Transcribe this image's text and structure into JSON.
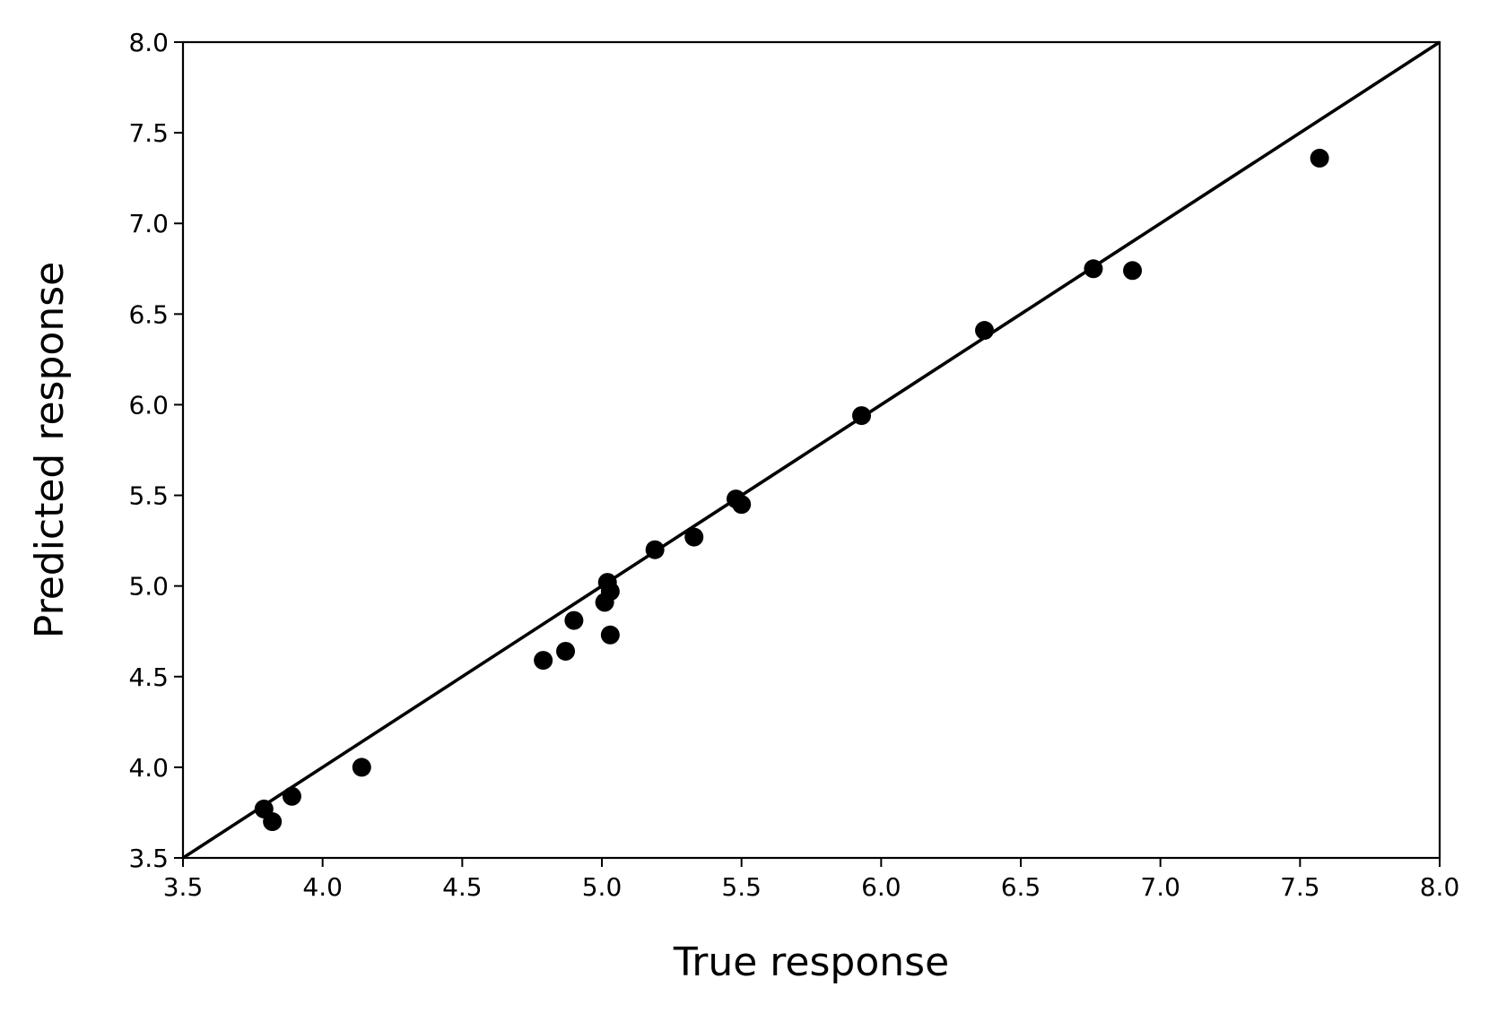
{
  "chart_data": {
    "type": "scatter",
    "xlabel": "True response",
    "ylabel": "Predicted response",
    "xlim": [
      3.5,
      8.0
    ],
    "ylim": [
      3.5,
      8.0
    ],
    "xticks": [
      "3.5",
      "4.0",
      "4.5",
      "5.0",
      "5.5",
      "6.0",
      "6.5",
      "7.0",
      "7.5",
      "8.0"
    ],
    "yticks": [
      "3.5",
      "4.0",
      "4.5",
      "5.0",
      "5.5",
      "6.0",
      "6.5",
      "7.0",
      "7.5",
      "8.0"
    ],
    "grid": false,
    "reference_line": {
      "from": [
        3.5,
        3.5
      ],
      "to": [
        8.0,
        8.0
      ]
    },
    "color": "#000000",
    "points": [
      {
        "x": 3.79,
        "y": 3.77
      },
      {
        "x": 3.82,
        "y": 3.7
      },
      {
        "x": 3.89,
        "y": 3.84
      },
      {
        "x": 4.14,
        "y": 4.0
      },
      {
        "x": 4.79,
        "y": 4.59
      },
      {
        "x": 4.87,
        "y": 4.64
      },
      {
        "x": 4.9,
        "y": 4.81
      },
      {
        "x": 5.01,
        "y": 4.91
      },
      {
        "x": 5.02,
        "y": 5.02
      },
      {
        "x": 5.03,
        "y": 4.97
      },
      {
        "x": 5.03,
        "y": 4.73
      },
      {
        "x": 5.19,
        "y": 5.2
      },
      {
        "x": 5.33,
        "y": 5.27
      },
      {
        "x": 5.48,
        "y": 5.48
      },
      {
        "x": 5.5,
        "y": 5.45
      },
      {
        "x": 5.93,
        "y": 5.94
      },
      {
        "x": 6.37,
        "y": 6.41
      },
      {
        "x": 6.76,
        "y": 6.75
      },
      {
        "x": 6.9,
        "y": 6.74
      },
      {
        "x": 7.57,
        "y": 7.36
      }
    ]
  }
}
